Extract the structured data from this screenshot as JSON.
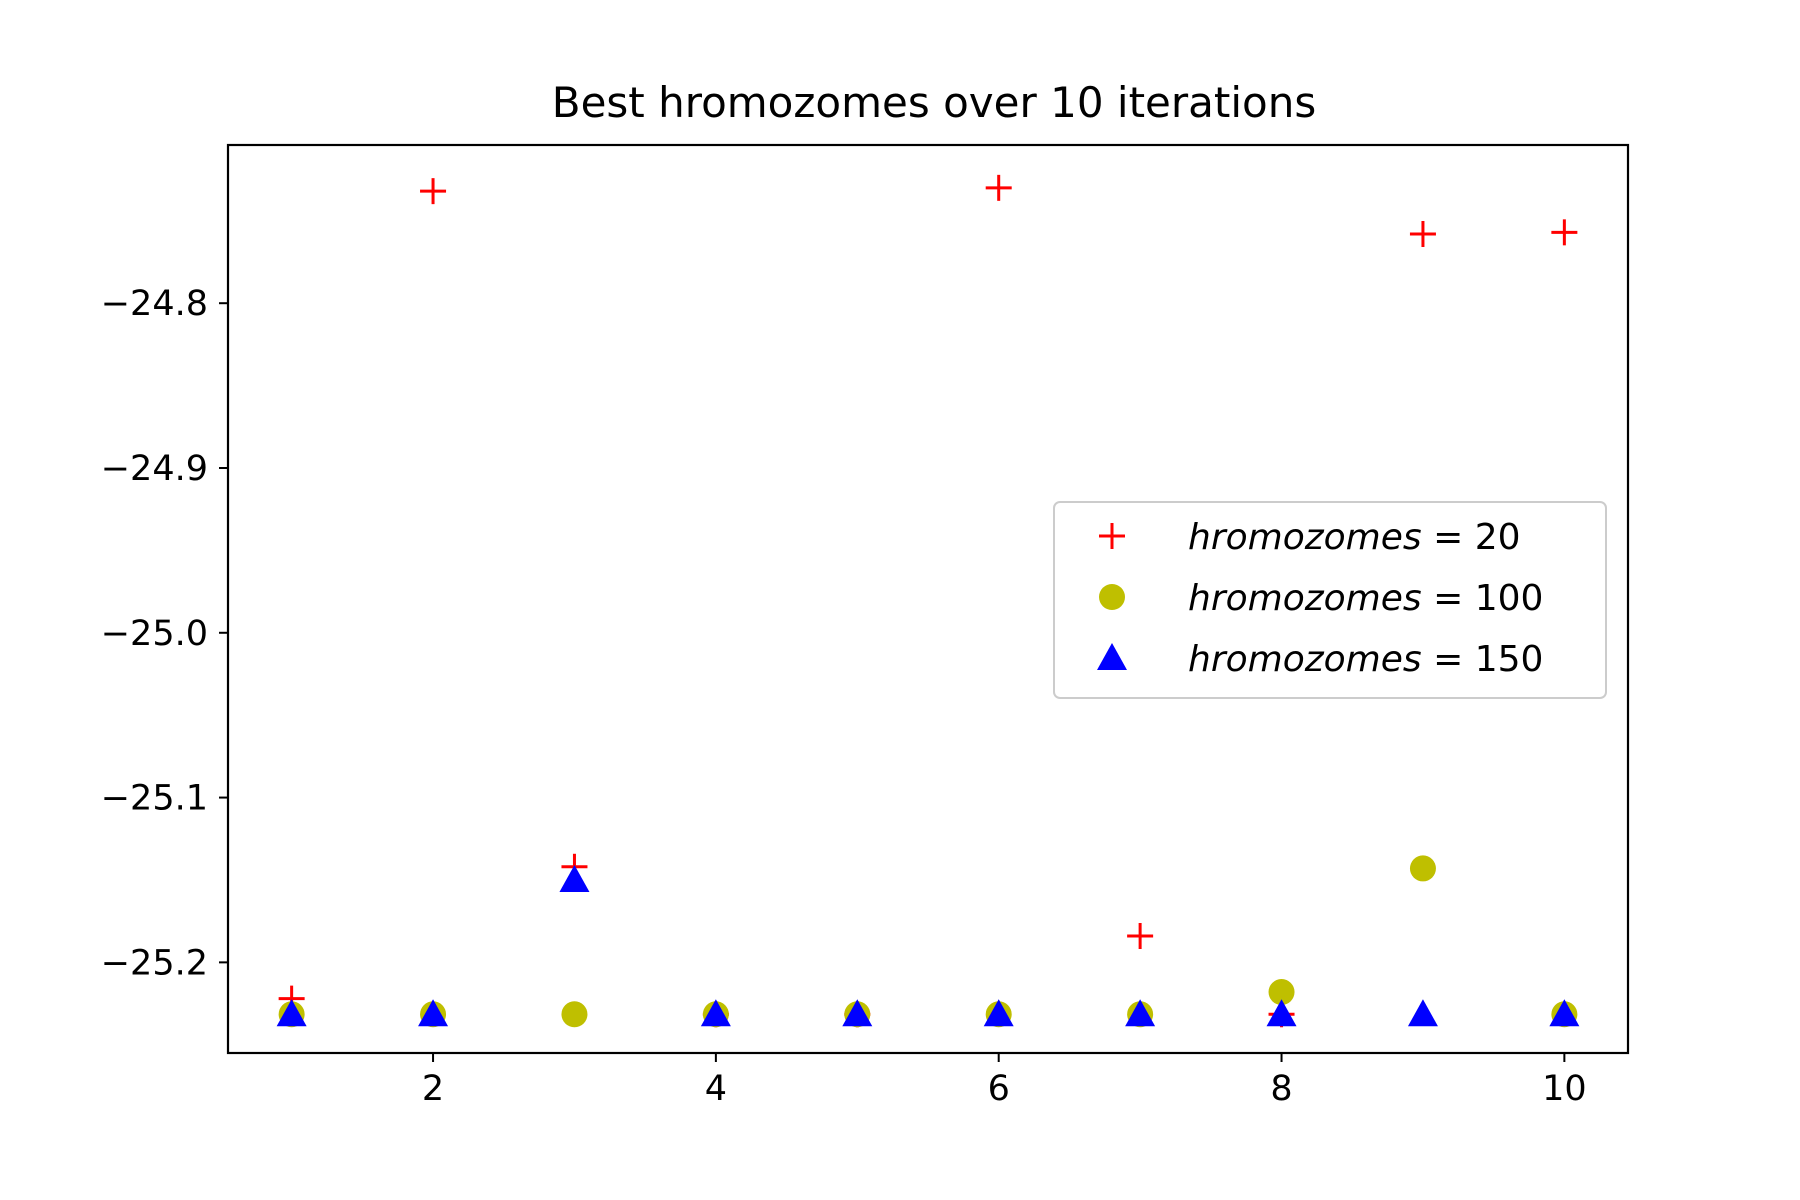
{
  "chart_data": {
    "type": "scatter",
    "title": "Best hromozomes over 10 iterations",
    "xlabel": "",
    "ylabel": "",
    "x": [
      1,
      2,
      3,
      4,
      5,
      6,
      7,
      8,
      9,
      10
    ],
    "xlim": [
      0.55,
      10.45
    ],
    "ylim": [
      -25.255,
      -24.704
    ],
    "xticks": [
      2,
      4,
      6,
      8,
      10
    ],
    "xtick_labels": [
      "2",
      "4",
      "6",
      "8",
      "10"
    ],
    "yticks": [
      -24.8,
      -24.9,
      -25.0,
      -25.1,
      -25.2
    ],
    "ytick_labels": [
      "−24.8",
      "−24.9",
      "−25.0",
      "−25.1",
      "−25.2"
    ],
    "grid": false,
    "legend_position": "center-right",
    "series": [
      {
        "name": "hromozomes = 20",
        "legend_var": "hromozomes",
        "legend_value": "20",
        "marker": "plus",
        "color": "#ff0000",
        "values": [
          -25.222,
          -24.732,
          -25.142,
          -25.2315,
          -25.2315,
          -24.73,
          -25.184,
          -25.2315,
          -24.758,
          -24.757
        ]
      },
      {
        "name": "hromozomes = 100",
        "legend_var": "hromozomes",
        "legend_value": "100",
        "marker": "circle",
        "color": "#bfbf00",
        "values": [
          -25.2315,
          -25.2315,
          -25.2315,
          -25.2315,
          -25.2315,
          -25.2315,
          -25.2315,
          -25.218,
          -25.143,
          -25.2315
        ]
      },
      {
        "name": "hromozomes = 150",
        "legend_var": "hromozomes",
        "legend_value": "150",
        "marker": "triangle",
        "color": "#0000ff",
        "values": [
          -25.2315,
          -25.2315,
          -25.15,
          -25.2315,
          -25.2315,
          -25.2315,
          -25.2315,
          -25.2315,
          -25.2315,
          -25.2315
        ]
      }
    ]
  }
}
